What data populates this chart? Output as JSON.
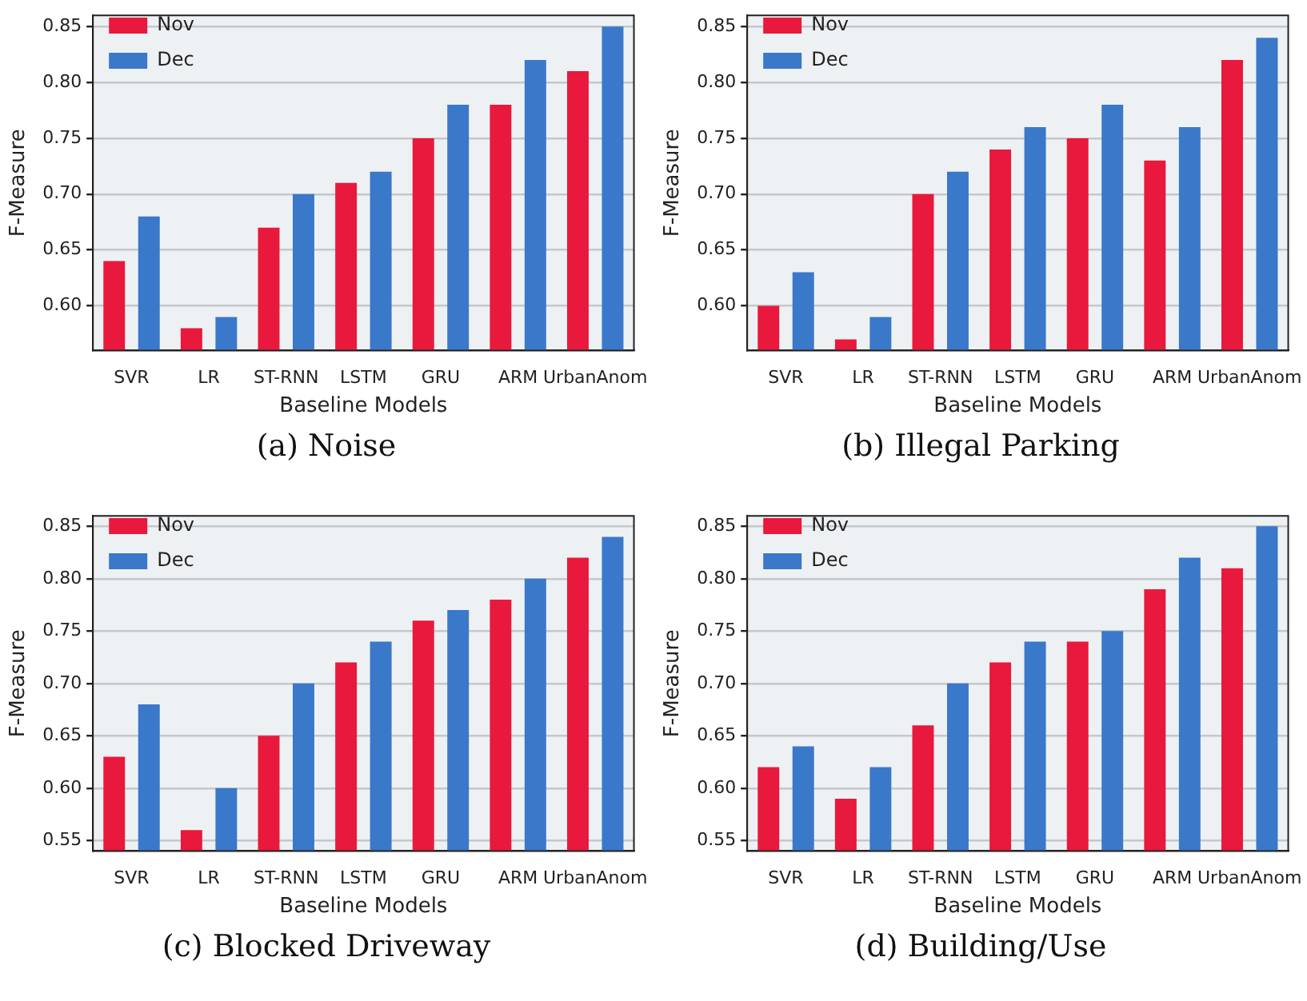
{
  "chart_data": [
    {
      "type": "bar",
      "title": "(a) Noise",
      "xlabel": "Baseline Models",
      "ylabel": "F-Measure",
      "categories": [
        "SVR",
        "LR",
        "ST-RNN",
        "LSTM",
        "GRU",
        "ARM",
        "UrbanAnom"
      ],
      "series": [
        {
          "name": "Nov",
          "color": "#e8193c",
          "values": [
            0.64,
            0.58,
            0.67,
            0.71,
            0.75,
            0.78,
            0.81
          ]
        },
        {
          "name": "Dec",
          "color": "#3a78c9",
          "values": [
            0.68,
            0.59,
            0.7,
            0.72,
            0.78,
            0.82,
            0.85
          ]
        }
      ],
      "ylim": [
        0.56,
        0.86
      ],
      "yticks": [
        {
          "value": 0.6,
          "label": "0.60"
        },
        {
          "value": 0.65,
          "label": "0.65"
        },
        {
          "value": 0.7,
          "label": "0.70"
        },
        {
          "value": 0.75,
          "label": "0.75"
        },
        {
          "value": 0.8,
          "label": "0.80"
        },
        {
          "value": 0.85,
          "label": "0.85"
        }
      ],
      "grid": "y",
      "legend": "top left"
    },
    {
      "type": "bar",
      "title": "(b) Illegal Parking",
      "xlabel": "Baseline Models",
      "ylabel": "F-Measure",
      "categories": [
        "SVR",
        "LR",
        "ST-RNN",
        "LSTM",
        "GRU",
        "ARM",
        "UrbanAnom"
      ],
      "series": [
        {
          "name": "Nov",
          "color": "#e8193c",
          "values": [
            0.6,
            0.57,
            0.7,
            0.74,
            0.75,
            0.73,
            0.82
          ]
        },
        {
          "name": "Dec",
          "color": "#3a78c9",
          "values": [
            0.63,
            0.59,
            0.72,
            0.76,
            0.78,
            0.76,
            0.84
          ]
        }
      ],
      "ylim": [
        0.56,
        0.86
      ],
      "yticks": [
        {
          "value": 0.6,
          "label": "0.60"
        },
        {
          "value": 0.65,
          "label": "0.65"
        },
        {
          "value": 0.7,
          "label": "0.70"
        },
        {
          "value": 0.75,
          "label": "0.75"
        },
        {
          "value": 0.8,
          "label": "0.80"
        },
        {
          "value": 0.85,
          "label": "0.85"
        }
      ],
      "grid": "y",
      "legend": "top left"
    },
    {
      "type": "bar",
      "title": "(c) Blocked Driveway",
      "xlabel": "Baseline Models",
      "ylabel": "F-Measure",
      "categories": [
        "SVR",
        "LR",
        "ST-RNN",
        "LSTM",
        "GRU",
        "ARM",
        "UrbanAnom"
      ],
      "series": [
        {
          "name": "Nov",
          "color": "#e8193c",
          "values": [
            0.63,
            0.56,
            0.65,
            0.72,
            0.76,
            0.78,
            0.82
          ]
        },
        {
          "name": "Dec",
          "color": "#3a78c9",
          "values": [
            0.68,
            0.6,
            0.7,
            0.74,
            0.77,
            0.8,
            0.84
          ]
        }
      ],
      "ylim": [
        0.54,
        0.86
      ],
      "yticks": [
        {
          "value": 0.55,
          "label": "0.55"
        },
        {
          "value": 0.6,
          "label": "0.60"
        },
        {
          "value": 0.65,
          "label": "0.65"
        },
        {
          "value": 0.7,
          "label": "0.70"
        },
        {
          "value": 0.75,
          "label": "0.75"
        },
        {
          "value": 0.8,
          "label": "0.80"
        },
        {
          "value": 0.85,
          "label": "0.85"
        }
      ],
      "grid": "y",
      "legend": "top left"
    },
    {
      "type": "bar",
      "title": "(d) Building/Use",
      "xlabel": "Baseline Models",
      "ylabel": "F-Measure",
      "categories": [
        "SVR",
        "LR",
        "ST-RNN",
        "LSTM",
        "GRU",
        "ARM",
        "UrbanAnom"
      ],
      "series": [
        {
          "name": "Nov",
          "color": "#e8193c",
          "values": [
            0.62,
            0.59,
            0.66,
            0.72,
            0.74,
            0.79,
            0.81
          ]
        },
        {
          "name": "Dec",
          "color": "#3a78c9",
          "values": [
            0.64,
            0.62,
            0.7,
            0.74,
            0.75,
            0.82,
            0.85
          ]
        }
      ],
      "ylim": [
        0.54,
        0.86
      ],
      "yticks": [
        {
          "value": 0.55,
          "label": "0.55"
        },
        {
          "value": 0.6,
          "label": "0.60"
        },
        {
          "value": 0.65,
          "label": "0.65"
        },
        {
          "value": 0.7,
          "label": "0.70"
        },
        {
          "value": 0.75,
          "label": "0.75"
        },
        {
          "value": 0.8,
          "label": "0.80"
        },
        {
          "value": 0.85,
          "label": "0.85"
        }
      ],
      "grid": "y",
      "legend": "top left"
    }
  ]
}
